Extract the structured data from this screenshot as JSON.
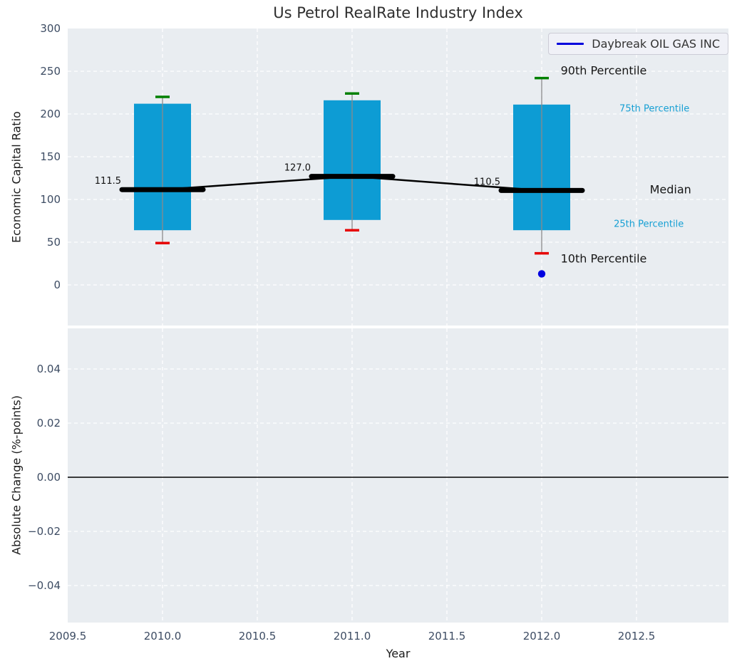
{
  "title": "Us Petrol RealRate Industry Index",
  "legend": {
    "label": "Daybreak OIL GAS INC",
    "line_color": "#0000dd"
  },
  "top_axes": {
    "ylabel": "Economic Capital Ratio",
    "ytick_labels": [
      "300",
      "250",
      "200",
      "150",
      "100",
      "50",
      "0"
    ],
    "ytick_values": [
      300,
      250,
      200,
      150,
      100,
      50,
      0
    ],
    "grid_values": [
      250,
      200,
      150,
      100,
      50,
      0
    ]
  },
  "bottom_axes": {
    "ylabel": "Absolute Change (%-points)",
    "ytick_labels": [
      "0.04",
      "0.02",
      "0.00",
      "−0.02",
      "−0.04"
    ],
    "ytick_values": [
      0.04,
      0.02,
      0,
      -0.02,
      -0.04
    ],
    "grid_values": [
      0.04,
      0.02,
      -0.02,
      -0.04
    ],
    "zero_line_value": 0
  },
  "x_axis": {
    "label": "Year",
    "tick_labels": [
      "2009.5",
      "2010.0",
      "2010.5",
      "2011.0",
      "2011.5",
      "2012.0",
      "2012.5"
    ],
    "tick_values": [
      2009.5,
      2010.0,
      2010.5,
      2011.0,
      2011.5,
      2012.0,
      2012.5
    ],
    "grid_values": [
      2010.0,
      2010.5,
      2011.0,
      2011.5,
      2012.0,
      2012.5
    ]
  },
  "chart_data": {
    "type": "boxplot-timeseries",
    "title": "Us Petrol RealRate Industry Index",
    "xlabel": "Year",
    "ylabel_top": "Economic Capital Ratio",
    "ylabel_bottom": "Absolute Change (%-points)",
    "xlim": [
      2009.5,
      2013.0
    ],
    "ylim_top": [
      -47.5,
      300
    ],
    "ylim_bottom": [
      -0.055,
      0.055
    ],
    "grid": "white-dashed",
    "legend_position": "upper right",
    "boxes": [
      {
        "year": 2010,
        "p10": 49,
        "p25": 64,
        "median": 111.5,
        "p75": 212,
        "p90": 220,
        "median_label": "111.5"
      },
      {
        "year": 2011,
        "p10": 64,
        "p25": 76,
        "median": 127.0,
        "p75": 216,
        "p90": 224,
        "median_label": "127.0"
      },
      {
        "year": 2012,
        "p10": 37,
        "p25": 64,
        "median": 110.5,
        "p75": 211,
        "p90": 242,
        "median_label": "110.5"
      }
    ],
    "median_series": {
      "x": [
        2010,
        2011,
        2012
      ],
      "values": [
        111.5,
        127.0,
        110.5
      ]
    },
    "company_point": {
      "name": "Daybreak OIL GAS INC",
      "year": 2012,
      "value": 13
    },
    "absolute_change_series": [],
    "annotations": [
      {
        "text": "90th Percentile",
        "year": 2012.1,
        "value": 251,
        "style": "big"
      },
      {
        "text": "75th Percentile",
        "year": 2012.41,
        "value": 206,
        "style": "small"
      },
      {
        "text": "Median",
        "year": 2012.57,
        "value": 112,
        "style": "big"
      },
      {
        "text": "25th Percentile",
        "year": 2012.38,
        "value": 71,
        "style": "small"
      },
      {
        "text": "10th Percentile",
        "year": 2012.1,
        "value": 31,
        "style": "big"
      }
    ],
    "colors": {
      "box_fill": "#0d9cd4",
      "p90_cap": "#008000",
      "p10_cap": "#e60000",
      "median_line": "#000000",
      "whisker": "#8a8a8a",
      "company_point": "#0000e0",
      "annotation_small_text": "#17a0d4",
      "grid": "#ffffff",
      "axes_background": "#e9edf1",
      "tick_text": "#3d4c63"
    }
  }
}
